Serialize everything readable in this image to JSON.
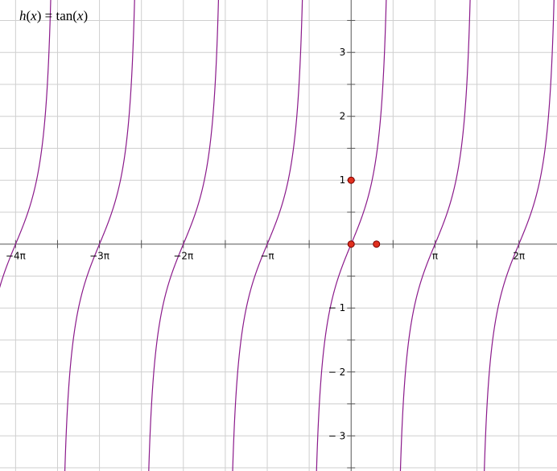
{
  "chart_data": {
    "type": "line",
    "title": "",
    "function_label": {
      "name": "h",
      "var": "x",
      "open": "(",
      "close_eq": ") = ",
      "expr_fn": "tan(",
      "expr_close": ")"
    },
    "xlabel": "",
    "ylabel": "",
    "xlim": [
      -13.15,
      7.71
    ],
    "ylim": [
      -3.55,
      3.82
    ],
    "grid": true,
    "series": [
      {
        "expression": "tan(x)",
        "color": "#8b1a8b"
      }
    ],
    "x_ticks": [
      {
        "value": -12.566,
        "label": "4π",
        "minus": true
      },
      {
        "value": -9.4248,
        "label": "3π",
        "minus": true
      },
      {
        "value": -6.2832,
        "label": "2π",
        "minus": true
      },
      {
        "value": -3.1416,
        "label": "π",
        "minus": true
      },
      {
        "value": 3.1416,
        "label": "π",
        "minus": false
      },
      {
        "value": 6.2832,
        "label": "2π",
        "minus": false
      }
    ],
    "x_minor_step": 1.5708,
    "y_ticks": [
      {
        "value": 3,
        "label": "3",
        "minus": false
      },
      {
        "value": 2,
        "label": "2",
        "minus": false
      },
      {
        "value": 1,
        "label": "1",
        "minus": false
      },
      {
        "value": -1,
        "label": "1",
        "minus": true
      },
      {
        "value": -2,
        "label": "2",
        "minus": true
      },
      {
        "value": -3,
        "label": "3",
        "minus": true
      }
    ],
    "y_minor_step": 0.5,
    "points": [
      {
        "x": 0,
        "y": 1,
        "color": "#e0301e"
      },
      {
        "x": 0,
        "y": 0,
        "color": "#e0301e"
      },
      {
        "x": 0.95,
        "y": 0,
        "color": "#e0301e"
      }
    ],
    "minus_sign": "−"
  }
}
